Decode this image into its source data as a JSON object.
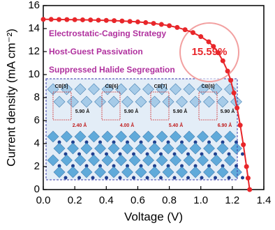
{
  "chart_data": {
    "type": "line",
    "xlabel": "Voltage (V)",
    "ylabel": "Current density (mA cm⁻²)",
    "x": [
      0,
      0.05,
      0.1,
      0.15,
      0.2,
      0.25,
      0.3,
      0.35,
      0.4,
      0.45,
      0.5,
      0.55,
      0.6,
      0.65,
      0.7,
      0.75,
      0.8,
      0.85,
      0.9,
      0.95,
      1.0,
      1.05,
      1.08,
      1.11,
      1.14,
      1.17,
      1.19,
      1.21,
      1.23,
      1.25,
      1.27,
      1.29,
      1.3,
      1.31
    ],
    "values": [
      14.8,
      14.8,
      14.79,
      14.78,
      14.77,
      14.76,
      14.75,
      14.73,
      14.71,
      14.69,
      14.66,
      14.62,
      14.58,
      14.52,
      14.45,
      14.36,
      14.25,
      14.1,
      13.9,
      13.65,
      13.3,
      12.85,
      12.45,
      11.9,
      11.2,
      10.3,
      9.5,
      8.4,
      7.1,
      5.6,
      3.9,
      2.0,
      1.0,
      0.0
    ],
    "color": "#e8262a",
    "xlim": [
      0,
      1.4
    ],
    "xticks": [
      {
        "value": 0,
        "label": "0.0"
      },
      0.2,
      0.4,
      0.6,
      0.8,
      {
        "value": 1,
        "label": "1.0"
      },
      1.2,
      1.4
    ],
    "ylim": [
      0,
      16
    ],
    "yticks": [
      0,
      2,
      4,
      6,
      8,
      10,
      12,
      14,
      16
    ],
    "annotations": [
      "Electrostatic-Caging Strategy",
      "Host-Guest Passivation",
      "Suppressed Halide Segregation"
    ],
    "highlight": "15.59%",
    "inset_labels": [
      "CB[5]",
      "CB[6]",
      "CB[7]",
      "CB[8]",
      "5.90 Å",
      "5.90 Å",
      "5.90 Å",
      "5.90 Å",
      "2.40 Å",
      "4.00 Å",
      "5.40 Å",
      "6.90 Å"
    ]
  }
}
